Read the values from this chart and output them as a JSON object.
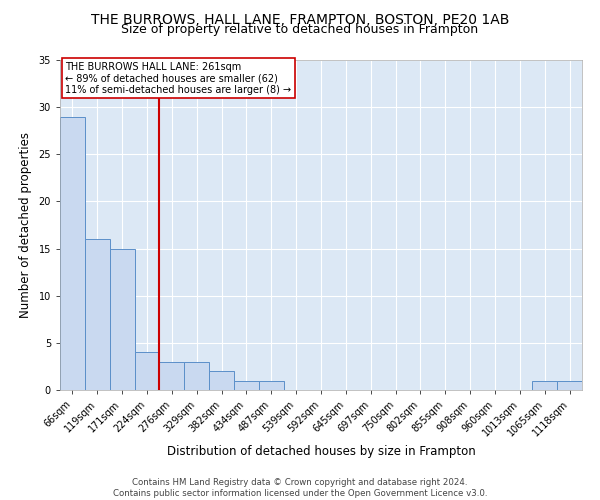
{
  "title": "THE BURROWS, HALL LANE, FRAMPTON, BOSTON, PE20 1AB",
  "subtitle": "Size of property relative to detached houses in Frampton",
  "xlabel": "Distribution of detached houses by size in Frampton",
  "ylabel": "Number of detached properties",
  "categories": [
    "66sqm",
    "119sqm",
    "171sqm",
    "224sqm",
    "276sqm",
    "329sqm",
    "382sqm",
    "434sqm",
    "487sqm",
    "539sqm",
    "592sqm",
    "645sqm",
    "697sqm",
    "750sqm",
    "802sqm",
    "855sqm",
    "908sqm",
    "960sqm",
    "1013sqm",
    "1065sqm",
    "1118sqm"
  ],
  "values": [
    29,
    16,
    15,
    4,
    3,
    3,
    2,
    1,
    1,
    0,
    0,
    0,
    0,
    0,
    0,
    0,
    0,
    0,
    0,
    1,
    1
  ],
  "bar_color": "#c9d9f0",
  "bar_edge_color": "#5b8fc9",
  "vline_x": 3.5,
  "vline_color": "#cc0000",
  "annotation_text": "THE BURROWS HALL LANE: 261sqm\n← 89% of detached houses are smaller (62)\n11% of semi-detached houses are larger (8) →",
  "annotation_box_color": "#ffffff",
  "annotation_box_edge": "#cc0000",
  "ylim": [
    0,
    35
  ],
  "yticks": [
    0,
    5,
    10,
    15,
    20,
    25,
    30,
    35
  ],
  "background_color": "#dce8f5",
  "footer_line1": "Contains HM Land Registry data © Crown copyright and database right 2024.",
  "footer_line2": "Contains public sector information licensed under the Open Government Licence v3.0.",
  "title_fontsize": 10,
  "subtitle_fontsize": 9,
  "axis_label_fontsize": 8.5,
  "tick_fontsize": 7
}
